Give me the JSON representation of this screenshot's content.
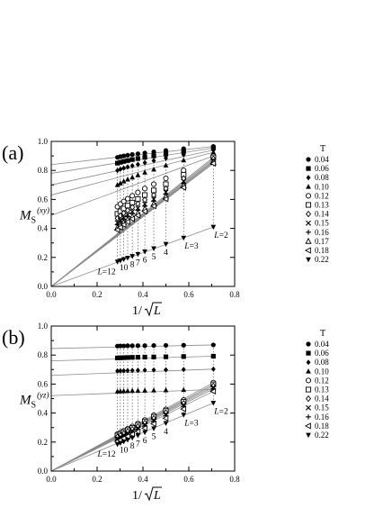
{
  "chart_data": [
    {
      "type": "scatter",
      "panel_label": "(a)",
      "ylabel_main": "M",
      "ylabel_sub": "S",
      "ylabel_sup": "(xy)",
      "xlabel_prefix": "1/",
      "xlabel_var": "L",
      "xlim": [
        0,
        0.8
      ],
      "ylim": [
        0,
        1.0
      ],
      "xticks": [
        "0.0",
        "0.2",
        "0.4",
        "0.6",
        "0.8"
      ],
      "yticks": [
        "0.0",
        "0.2",
        "0.4",
        "0.6",
        "0.8",
        "1.0"
      ],
      "x": [
        0.2887,
        0.3015,
        0.3162,
        0.3333,
        0.3536,
        0.378,
        0.4082,
        0.4472,
        0.5,
        0.5774,
        0.7071
      ],
      "L_labels": [
        {
          "text": "L=12",
          "x": 0.2887
        },
        {
          "text": "10",
          "x": 0.3162
        },
        {
          "text": "8",
          "x": 0.3536
        },
        {
          "text": "7",
          "x": 0.378
        },
        {
          "text": "6",
          "x": 0.4082
        },
        {
          "text": "5",
          "x": 0.4472
        },
        {
          "text": "4",
          "x": 0.5
        },
        {
          "text": "L=3",
          "x": 0.5774
        },
        {
          "text": "L=2",
          "x": 0.7071
        }
      ],
      "legend_title": "T",
      "series": [
        {
          "name": "0.04",
          "marker": "circle-filled",
          "values": [
            0.89,
            0.895,
            0.9,
            0.905,
            0.91,
            0.915,
            0.92,
            0.928,
            0.937,
            0.95,
            0.965
          ],
          "fit": [
            0.84,
            0.965
          ]
        },
        {
          "name": "0.06",
          "marker": "square-filled",
          "values": [
            0.85,
            0.856,
            0.862,
            0.868,
            0.875,
            0.882,
            0.89,
            0.9,
            0.912,
            0.93,
            0.955
          ],
          "fit": [
            0.78,
            0.955
          ]
        },
        {
          "name": "0.08",
          "marker": "diamond-filled",
          "values": [
            0.8,
            0.808,
            0.816,
            0.824,
            0.832,
            0.842,
            0.853,
            0.867,
            0.885,
            0.908,
            0.94
          ],
          "fit": [
            0.7,
            0.94
          ]
        },
        {
          "name": "0.10",
          "marker": "triangle-up-filled",
          "values": [
            0.7,
            0.712,
            0.725,
            0.738,
            0.752,
            0.768,
            0.786,
            0.807,
            0.835,
            0.87,
            0.925
          ],
          "fit": [
            0.63,
            0.925
          ]
        },
        {
          "name": "0.12",
          "marker": "circle-open",
          "values": [
            0.55,
            0.568,
            0.586,
            0.605,
            0.625,
            0.648,
            0.675,
            0.705,
            0.745,
            0.8,
            0.9
          ],
          "fit": [
            0.49,
            0.9
          ]
        },
        {
          "name": "0.13",
          "marker": "square-open",
          "values": [
            0.5,
            0.518,
            0.537,
            0.557,
            0.578,
            0.602,
            0.63,
            0.662,
            0.705,
            0.77,
            0.89
          ],
          "fit": [
            0,
            0.89
          ]
        },
        {
          "name": "0.14",
          "marker": "diamond-open",
          "values": [
            0.47,
            0.488,
            0.506,
            0.525,
            0.546,
            0.57,
            0.597,
            0.63,
            0.675,
            0.745,
            0.88
          ],
          "fit": [
            0,
            0.88
          ]
        },
        {
          "name": "0.15",
          "marker": "cross",
          "values": [
            0.44,
            0.457,
            0.475,
            0.495,
            0.516,
            0.54,
            0.568,
            0.602,
            0.65,
            0.725,
            0.87
          ],
          "fit": [
            0,
            0.87
          ]
        },
        {
          "name": "0.16",
          "marker": "plus",
          "values": [
            0.425,
            0.442,
            0.46,
            0.48,
            0.501,
            0.525,
            0.553,
            0.588,
            0.635,
            0.71,
            0.862
          ],
          "fit": [
            0,
            0.862
          ]
        },
        {
          "name": "0.17",
          "marker": "triangle-up-open",
          "values": [
            0.405,
            0.422,
            0.44,
            0.46,
            0.481,
            0.505,
            0.534,
            0.569,
            0.618,
            0.695,
            0.855
          ],
          "fit": [
            0,
            0.855
          ]
        },
        {
          "name": "0.18",
          "marker": "triangle-left-open",
          "values": [
            0.39,
            0.407,
            0.425,
            0.445,
            0.466,
            0.49,
            0.518,
            0.554,
            0.603,
            0.682,
            0.848
          ],
          "fit": [
            0,
            0.848
          ]
        },
        {
          "name": "0.22",
          "marker": "triangle-down-filled",
          "values": [
            0.17,
            0.178,
            0.187,
            0.197,
            0.208,
            0.222,
            0.24,
            0.262,
            0.292,
            0.335,
            0.41
          ],
          "fit": [
            0,
            0.41
          ]
        }
      ]
    },
    {
      "type": "scatter",
      "panel_label": "(b)",
      "ylabel_main": "M",
      "ylabel_sub": "S",
      "ylabel_sup": "(yz)",
      "xlabel_prefix": "1/",
      "xlabel_var": "L",
      "xlim": [
        0,
        0.8
      ],
      "ylim": [
        0,
        1.0
      ],
      "xticks": [
        "0.0",
        "0.2",
        "0.4",
        "0.6",
        "0.8"
      ],
      "yticks": [
        "0.0",
        "0.2",
        "0.4",
        "0.6",
        "0.8",
        "1.0"
      ],
      "x": [
        0.2887,
        0.3015,
        0.3162,
        0.3333,
        0.3536,
        0.378,
        0.4082,
        0.4472,
        0.5,
        0.5774,
        0.7071
      ],
      "L_labels": [
        {
          "text": "L=12",
          "x": 0.2887
        },
        {
          "text": "10",
          "x": 0.3162
        },
        {
          "text": "8",
          "x": 0.3536
        },
        {
          "text": "7",
          "x": 0.378
        },
        {
          "text": "6",
          "x": 0.4082
        },
        {
          "text": "5",
          "x": 0.4472
        },
        {
          "text": "4",
          "x": 0.5
        },
        {
          "text": "L=3",
          "x": 0.5774
        },
        {
          "text": "L=2",
          "x": 0.7071
        }
      ],
      "legend_title": "T",
      "series": [
        {
          "name": "0.04",
          "marker": "circle-filled",
          "values": [
            0.862,
            0.863,
            0.863,
            0.864,
            0.864,
            0.865,
            0.865,
            0.866,
            0.867,
            0.868,
            0.87
          ],
          "fit": [
            0.845,
            0.87
          ]
        },
        {
          "name": "0.06",
          "marker": "square-filled",
          "values": [
            0.78,
            0.781,
            0.782,
            0.783,
            0.784,
            0.785,
            0.786,
            0.787,
            0.788,
            0.79,
            0.792
          ],
          "fit": [
            0.76,
            0.792
          ]
        },
        {
          "name": "0.08",
          "marker": "diamond-filled",
          "values": [
            0.69,
            0.691,
            0.692,
            0.693,
            0.694,
            0.695,
            0.696,
            0.697,
            0.698,
            0.7,
            0.703
          ],
          "fit": [
            0.66,
            0.703
          ]
        },
        {
          "name": "0.10",
          "marker": "triangle-up-filled",
          "values": [
            0.55,
            0.551,
            0.552,
            0.553,
            0.554,
            0.555,
            0.556,
            0.557,
            0.558,
            0.56,
            0.563
          ],
          "fit": [
            0.52,
            0.563
          ]
        },
        {
          "name": "0.12",
          "marker": "circle-open",
          "values": [
            0.255,
            0.265,
            0.278,
            0.292,
            0.308,
            0.328,
            0.352,
            0.385,
            0.425,
            0.49,
            0.61
          ],
          "fit": [
            0,
            0.61
          ]
        },
        {
          "name": "0.13",
          "marker": "square-open",
          "values": [
            0.245,
            0.255,
            0.268,
            0.282,
            0.298,
            0.318,
            0.342,
            0.374,
            0.414,
            0.478,
            0.598
          ],
          "fit": [
            0,
            0.598
          ]
        },
        {
          "name": "0.14",
          "marker": "diamond-open",
          "values": [
            0.236,
            0.246,
            0.258,
            0.272,
            0.288,
            0.307,
            0.331,
            0.363,
            0.403,
            0.467,
            0.588
          ],
          "fit": [
            0,
            0.588
          ]
        },
        {
          "name": "0.15",
          "marker": "cross",
          "values": [
            0.226,
            0.236,
            0.248,
            0.262,
            0.278,
            0.297,
            0.321,
            0.352,
            0.392,
            0.456,
            0.578
          ],
          "fit": [
            0,
            0.578
          ]
        },
        {
          "name": "0.16",
          "marker": "plus",
          "values": [
            0.217,
            0.227,
            0.239,
            0.253,
            0.268,
            0.287,
            0.311,
            0.342,
            0.382,
            0.445,
            0.567
          ],
          "fit": [
            0,
            0.567
          ]
        },
        {
          "name": "0.18",
          "marker": "triangle-left-open",
          "values": [
            0.205,
            0.214,
            0.226,
            0.239,
            0.254,
            0.273,
            0.296,
            0.326,
            0.365,
            0.428,
            0.55
          ],
          "fit": [
            0,
            0.55
          ]
        },
        {
          "name": "0.22",
          "marker": "triangle-down-filled",
          "values": [
            0.185,
            0.193,
            0.203,
            0.215,
            0.229,
            0.246,
            0.267,
            0.294,
            0.33,
            0.388,
            0.47
          ],
          "fit": [
            0,
            0.47
          ]
        }
      ]
    }
  ]
}
